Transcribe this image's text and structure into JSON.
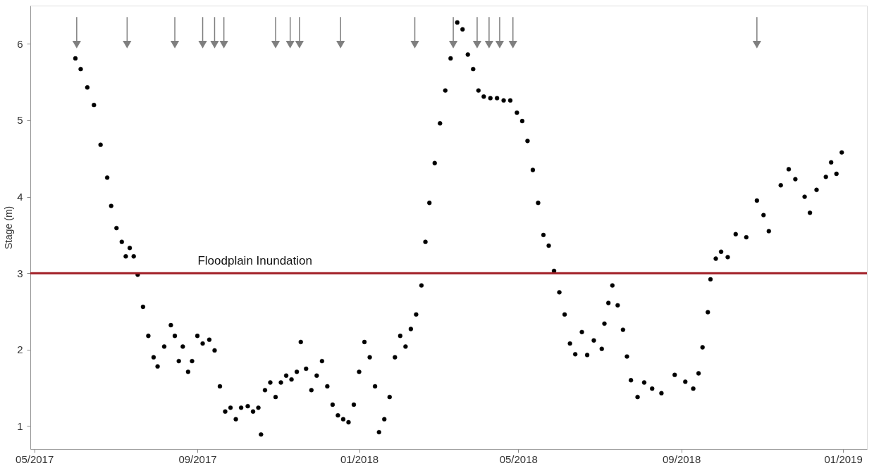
{
  "chart_data": {
    "type": "scatter",
    "ylabel": "Stage (m)",
    "xlim": [
      "2017-04-28",
      "2019-01-19"
    ],
    "ylim": [
      0.7,
      6.5
    ],
    "yticks": [
      1,
      2,
      3,
      4,
      5,
      6
    ],
    "xticks": [
      {
        "value": "2017-05-01",
        "label": "05/2017"
      },
      {
        "value": "2017-09-01",
        "label": "09/2017"
      },
      {
        "value": "2018-01-01",
        "label": "01/2018"
      },
      {
        "value": "2018-05-01",
        "label": "05/2018"
      },
      {
        "value": "2018-09-01",
        "label": "09/2018"
      },
      {
        "value": "2019-01-01",
        "label": "01/2019"
      }
    ],
    "grid": false,
    "ref_lines": [
      {
        "axis": "y",
        "value": 3,
        "label": "Floodplain Inundation",
        "color": "#a01c24",
        "line_style": "solid"
      }
    ],
    "series": [
      {
        "marker": "circle",
        "color": "#000000",
        "x": [
          "2017-06-01",
          "2017-06-05",
          "2017-06-10",
          "2017-06-15",
          "2017-06-20",
          "2017-06-25",
          "2017-06-28",
          "2017-07-02",
          "2017-07-06",
          "2017-07-09",
          "2017-07-12",
          "2017-07-15",
          "2017-07-18",
          "2017-07-22",
          "2017-07-26",
          "2017-07-30",
          "2017-08-02",
          "2017-08-07",
          "2017-08-12",
          "2017-08-15",
          "2017-08-18",
          "2017-08-21",
          "2017-08-25",
          "2017-08-28",
          "2017-09-01",
          "2017-09-05",
          "2017-09-10",
          "2017-09-14",
          "2017-09-18",
          "2017-09-22",
          "2017-09-26",
          "2017-09-30",
          "2017-10-04",
          "2017-10-09",
          "2017-10-13",
          "2017-10-17",
          "2017-10-19",
          "2017-10-22",
          "2017-10-26",
          "2017-10-30",
          "2017-11-03",
          "2017-11-07",
          "2017-11-11",
          "2017-11-15",
          "2017-11-18",
          "2017-11-22",
          "2017-11-26",
          "2017-11-30",
          "2017-12-04",
          "2017-12-08",
          "2017-12-12",
          "2017-12-16",
          "2017-12-20",
          "2017-12-24",
          "2017-12-28",
          "2018-01-01",
          "2018-01-05",
          "2018-01-09",
          "2018-01-13",
          "2018-01-16",
          "2018-01-20",
          "2018-01-24",
          "2018-01-28",
          "2018-02-01",
          "2018-02-05",
          "2018-02-09",
          "2018-02-13",
          "2018-02-17",
          "2018-02-20",
          "2018-02-23",
          "2018-02-27",
          "2018-03-03",
          "2018-03-07",
          "2018-03-11",
          "2018-03-16",
          "2018-03-20",
          "2018-03-24",
          "2018-03-28",
          "2018-04-01",
          "2018-04-05",
          "2018-04-10",
          "2018-04-15",
          "2018-04-20",
          "2018-04-25",
          "2018-04-30",
          "2018-05-04",
          "2018-05-08",
          "2018-05-12",
          "2018-05-16",
          "2018-05-20",
          "2018-05-24",
          "2018-05-28",
          "2018-06-01",
          "2018-06-05",
          "2018-06-09",
          "2018-06-13",
          "2018-06-18",
          "2018-06-22",
          "2018-06-27",
          "2018-07-03",
          "2018-07-05",
          "2018-07-08",
          "2018-07-11",
          "2018-07-15",
          "2018-07-19",
          "2018-07-22",
          "2018-07-25",
          "2018-07-30",
          "2018-08-04",
          "2018-08-10",
          "2018-08-17",
          "2018-08-27",
          "2018-09-04",
          "2018-09-10",
          "2018-09-14",
          "2018-09-17",
          "2018-09-21",
          "2018-09-23",
          "2018-09-27",
          "2018-10-01",
          "2018-10-06",
          "2018-10-12",
          "2018-10-20",
          "2018-10-28",
          "2018-11-02",
          "2018-11-06",
          "2018-11-15",
          "2018-11-21",
          "2018-11-26",
          "2018-12-03",
          "2018-12-07",
          "2018-12-12",
          "2018-12-19",
          "2018-12-23",
          "2018-12-27",
          "2018-12-31"
        ],
        "values": [
          5.81,
          5.67,
          5.43,
          5.2,
          4.68,
          4.25,
          3.88,
          3.59,
          3.41,
          3.22,
          3.33,
          3.22,
          2.98,
          2.56,
          2.18,
          1.9,
          1.78,
          2.04,
          2.32,
          2.18,
          1.85,
          2.04,
          1.71,
          1.85,
          2.18,
          2.08,
          2.13,
          1.99,
          1.52,
          1.19,
          1.24,
          1.09,
          1.24,
          1.26,
          1.19,
          1.24,
          0.89,
          1.47,
          1.57,
          1.38,
          1.57,
          1.66,
          1.61,
          1.71,
          2.1,
          1.75,
          1.47,
          1.66,
          1.85,
          1.52,
          1.28,
          1.14,
          1.09,
          1.05,
          1.28,
          1.71,
          2.1,
          1.9,
          1.52,
          0.92,
          1.09,
          1.38,
          1.9,
          2.18,
          2.04,
          2.27,
          2.46,
          2.84,
          3.41,
          3.92,
          4.44,
          4.96,
          5.39,
          5.81,
          6.28,
          6.19,
          5.86,
          5.67,
          5.39,
          5.31,
          5.29,
          5.29,
          5.26,
          5.26,
          5.1,
          4.99,
          4.73,
          4.35,
          3.92,
          3.5,
          3.36,
          3.03,
          2.75,
          2.46,
          2.08,
          1.94,
          2.23,
          1.93,
          2.12,
          2.01,
          2.34,
          2.61,
          2.84,
          2.58,
          2.26,
          1.91,
          1.6,
          1.38,
          1.57,
          1.49,
          1.43,
          1.67,
          1.58,
          1.49,
          1.69,
          2.03,
          2.49,
          2.92,
          3.19,
          3.28,
          3.21,
          3.51,
          3.47,
          3.95,
          3.76,
          3.55,
          4.15,
          4.36,
          4.23,
          4.0,
          3.79,
          4.09,
          4.26,
          4.45,
          4.3,
          4.58
        ]
      },
      {
        "marker": "triangle",
        "color": "#7f7f7f",
        "errors": [
          [
            5.99,
            6.35
          ],
          [
            5.99,
            6.35
          ],
          [
            5.99,
            6.35
          ],
          [
            5.99,
            6.35
          ],
          [
            5.99,
            6.35
          ],
          [
            5.99,
            6.35
          ],
          [
            5.99,
            6.35
          ],
          [
            5.99,
            6.35
          ],
          [
            5.99,
            6.35
          ],
          [
            5.99,
            6.35
          ],
          [
            5.99,
            6.35
          ],
          [
            5.99,
            6.35
          ],
          [
            5.99,
            6.35
          ],
          [
            5.99,
            6.35
          ],
          [
            5.99,
            6.35
          ],
          [
            5.99,
            6.35
          ],
          [
            5.99,
            6.35
          ]
        ],
        "x": [
          "2017-06-02",
          "2017-07-10",
          "2017-08-15",
          "2017-09-05",
          "2017-09-14",
          "2017-09-21",
          "2017-10-30",
          "2017-11-10",
          "2017-11-17",
          "2017-12-18",
          "2018-02-12",
          "2018-03-13",
          "2018-03-31",
          "2018-04-09",
          "2018-04-17",
          "2018-04-27",
          "2018-10-28"
        ],
        "values": [
          5.99,
          5.99,
          5.99,
          5.99,
          5.99,
          5.99,
          5.99,
          5.99,
          5.99,
          5.99,
          5.99,
          5.99,
          5.99,
          5.99,
          5.99,
          5.99,
          5.99
        ]
      }
    ]
  }
}
